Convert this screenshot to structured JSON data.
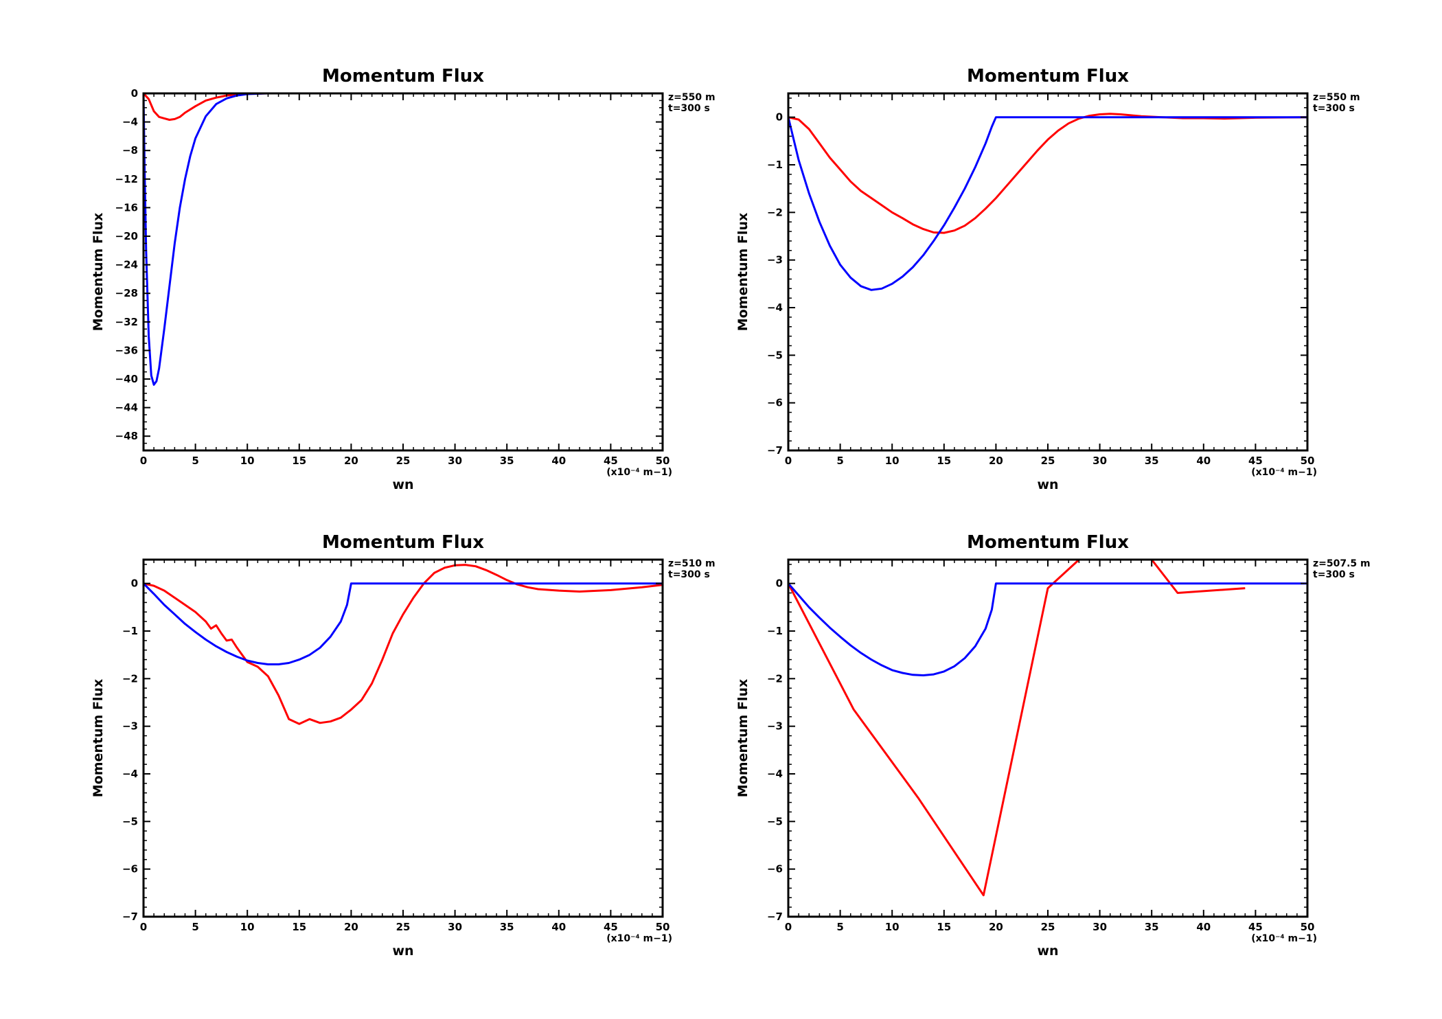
{
  "chart_data": [
    {
      "type": "line",
      "title": "Momentum Flux",
      "xlabel": "wn",
      "ylabel": "Momentum Flux",
      "x_unit": "(x10⁻⁴ m−1)",
      "annotations": [
        "z=550 m",
        "t=300 s"
      ],
      "xlim": [
        0,
        50
      ],
      "ylim": [
        -50,
        0
      ],
      "x_ticks": [
        0,
        5,
        10,
        15,
        20,
        25,
        30,
        35,
        40,
        45,
        50
      ],
      "x_tick_labels": [
        "0",
        "5",
        "10",
        "15",
        "20",
        "25",
        "30",
        "35",
        "40",
        "45",
        "50"
      ],
      "y_ticks": [
        0,
        -4,
        -8,
        -12,
        -16,
        -20,
        -24,
        -28,
        -32,
        -36,
        -40,
        -44,
        -48
      ],
      "y_tick_labels": [
        "0",
        "−4",
        "−8",
        "−12",
        "−16",
        "−20",
        "−24",
        "−28",
        "−32",
        "−36",
        "−40",
        "−44",
        "−48"
      ],
      "grid": false,
      "series": [
        {
          "color": "#ff0000",
          "x": [
            0,
            0.5,
            1,
            1.5,
            2,
            2.5,
            3,
            3.5,
            4,
            5,
            6,
            7,
            8,
            9,
            10,
            12,
            15,
            20,
            30,
            40,
            50
          ],
          "y": [
            0,
            -0.8,
            -2.5,
            -3.3,
            -3.5,
            -3.7,
            -3.6,
            -3.3,
            -2.7,
            -1.8,
            -1.0,
            -0.6,
            -0.3,
            -0.15,
            -0.05,
            0,
            0,
            0,
            0,
            0,
            0
          ]
        },
        {
          "color": "#0000ff",
          "x": [
            0,
            0.1,
            0.25,
            0.5,
            0.75,
            1,
            1.25,
            1.5,
            2,
            2.5,
            3,
            3.5,
            4,
            4.5,
            5,
            6,
            7,
            8,
            9,
            10,
            12,
            15,
            20,
            30,
            40,
            50
          ],
          "y": [
            0,
            -10,
            -22,
            -34,
            -39.5,
            -40.8,
            -40.3,
            -38.5,
            -33,
            -27,
            -21,
            -16,
            -12,
            -8.8,
            -6.3,
            -3.2,
            -1.5,
            -0.7,
            -0.3,
            -0.1,
            0,
            0,
            0,
            0,
            0,
            0
          ]
        }
      ]
    },
    {
      "type": "line",
      "title": "Momentum Flux",
      "xlabel": "wn",
      "ylabel": "Momentum Flux",
      "x_unit": "(x10⁻⁴ m−1)",
      "annotations": [
        "z=550 m",
        "t=300 s"
      ],
      "xlim": [
        0,
        50
      ],
      "ylim": [
        -7,
        0.5
      ],
      "x_ticks": [
        0,
        5,
        10,
        15,
        20,
        25,
        30,
        35,
        40,
        45,
        50
      ],
      "x_tick_labels": [
        "0",
        "5",
        "10",
        "15",
        "20",
        "25",
        "30",
        "35",
        "40",
        "45",
        "50"
      ],
      "y_ticks": [
        0,
        -1,
        -2,
        -3,
        -4,
        -5,
        -6,
        -7
      ],
      "y_tick_labels": [
        "0",
        "−1",
        "−2",
        "−3",
        "−4",
        "−5",
        "−6",
        "−7"
      ],
      "grid": false,
      "series": [
        {
          "color": "#ff0000",
          "x": [
            0,
            1,
            2,
            3,
            4,
            5,
            6,
            7,
            8,
            9,
            10,
            11,
            12,
            13,
            14,
            15,
            16,
            17,
            18,
            19,
            20,
            21,
            22,
            23,
            24,
            25,
            26,
            27,
            28,
            29,
            30,
            31,
            32,
            33,
            34,
            35,
            36,
            37,
            38,
            39,
            40,
            42,
            45,
            50
          ],
          "y": [
            0,
            -0.05,
            -0.25,
            -0.55,
            -0.85,
            -1.1,
            -1.35,
            -1.55,
            -1.7,
            -1.85,
            -2.0,
            -2.12,
            -2.25,
            -2.35,
            -2.42,
            -2.43,
            -2.38,
            -2.28,
            -2.12,
            -1.92,
            -1.7,
            -1.45,
            -1.2,
            -0.95,
            -0.7,
            -0.47,
            -0.28,
            -0.13,
            -0.03,
            0.03,
            0.06,
            0.07,
            0.06,
            0.04,
            0.02,
            0.01,
            0.0,
            -0.01,
            -0.02,
            -0.02,
            -0.02,
            -0.03,
            -0.01,
            0
          ]
        },
        {
          "color": "#0000ff",
          "x": [
            0,
            1,
            2,
            3,
            4,
            5,
            6,
            7,
            8,
            9,
            10,
            11,
            12,
            13,
            14,
            15,
            16,
            17,
            18,
            19,
            19.6,
            20,
            20.05,
            25,
            30,
            35,
            40,
            45,
            50
          ],
          "y": [
            0,
            -0.9,
            -1.6,
            -2.2,
            -2.7,
            -3.1,
            -3.37,
            -3.55,
            -3.63,
            -3.6,
            -3.5,
            -3.35,
            -3.15,
            -2.9,
            -2.6,
            -2.27,
            -1.9,
            -1.5,
            -1.05,
            -0.55,
            -0.2,
            0,
            0,
            0,
            0,
            0,
            0,
            0,
            0
          ]
        }
      ]
    },
    {
      "type": "line",
      "title": "Momentum Flux",
      "xlabel": "wn",
      "ylabel": "Momentum Flux",
      "x_unit": "(x10⁻⁴ m−1)",
      "annotations": [
        "z=510 m",
        "t=300 s"
      ],
      "xlim": [
        0,
        50
      ],
      "ylim": [
        -7,
        0.5
      ],
      "x_ticks": [
        0,
        5,
        10,
        15,
        20,
        25,
        30,
        35,
        40,
        45,
        50
      ],
      "x_tick_labels": [
        "0",
        "5",
        "10",
        "15",
        "20",
        "25",
        "30",
        "35",
        "40",
        "45",
        "50"
      ],
      "y_ticks": [
        0,
        -1,
        -2,
        -3,
        -4,
        -5,
        -6,
        -7
      ],
      "y_tick_labels": [
        "0",
        "−1",
        "−2",
        "−3",
        "−4",
        "−5",
        "−6",
        "−7"
      ],
      "grid": false,
      "series": [
        {
          "color": "#ff0000",
          "x": [
            0,
            1,
            2,
            3,
            4,
            5,
            6,
            6.5,
            7,
            7.5,
            8,
            8.5,
            9,
            10,
            11,
            12,
            13,
            14,
            15,
            16,
            17,
            18,
            19,
            20,
            21,
            22,
            23,
            24,
            25,
            26,
            27,
            28,
            29,
            30,
            31,
            32,
            33,
            34,
            35,
            36,
            37,
            38,
            40,
            42,
            45,
            48,
            50
          ],
          "y": [
            0,
            -0.05,
            -0.15,
            -0.3,
            -0.45,
            -0.6,
            -0.8,
            -0.95,
            -0.88,
            -1.05,
            -1.2,
            -1.18,
            -1.35,
            -1.65,
            -1.75,
            -1.95,
            -2.35,
            -2.85,
            -2.95,
            -2.85,
            -2.93,
            -2.9,
            -2.82,
            -2.65,
            -2.45,
            -2.1,
            -1.6,
            -1.05,
            -0.65,
            -0.3,
            0.0,
            0.22,
            0.33,
            0.38,
            0.39,
            0.36,
            0.28,
            0.18,
            0.07,
            -0.02,
            -0.08,
            -0.12,
            -0.15,
            -0.17,
            -0.14,
            -0.08,
            -0.03
          ]
        },
        {
          "color": "#0000ff",
          "x": [
            0,
            1,
            2,
            3,
            4,
            5,
            6,
            7,
            8,
            9,
            10,
            11,
            12,
            13,
            14,
            15,
            16,
            17,
            18,
            19,
            19.6,
            20,
            20.05,
            25,
            30,
            35,
            40,
            45,
            50
          ],
          "y": [
            0,
            -0.22,
            -0.45,
            -0.65,
            -0.85,
            -1.02,
            -1.18,
            -1.32,
            -1.44,
            -1.54,
            -1.62,
            -1.67,
            -1.7,
            -1.7,
            -1.67,
            -1.6,
            -1.5,
            -1.35,
            -1.12,
            -0.8,
            -0.45,
            0,
            0,
            0,
            0,
            0,
            0,
            0,
            0
          ]
        }
      ]
    },
    {
      "type": "line",
      "title": "Momentum Flux",
      "xlabel": "wn",
      "ylabel": "Momentum Flux",
      "x_unit": "(x10⁻⁴ m−1)",
      "annotations": [
        "z=507.5 m",
        "t=300 s"
      ],
      "xlim": [
        0,
        50
      ],
      "ylim": [
        -7,
        0.5
      ],
      "x_ticks": [
        0,
        5,
        10,
        15,
        20,
        25,
        30,
        35,
        40,
        45,
        50
      ],
      "x_tick_labels": [
        "0",
        "5",
        "10",
        "15",
        "20",
        "25",
        "30",
        "35",
        "40",
        "45",
        "50"
      ],
      "y_ticks": [
        0,
        -1,
        -2,
        -3,
        -4,
        -5,
        -6,
        -7
      ],
      "y_tick_labels": [
        "0",
        "−1",
        "−2",
        "−3",
        "−4",
        "−5",
        "−6",
        "−7"
      ],
      "grid": false,
      "series": [
        {
          "color": "#ff0000",
          "x": [
            0,
            6.3,
            12.5,
            18.8,
            25,
            28,
            30,
            32,
            35,
            37.5,
            44
          ],
          "y": [
            0,
            -2.65,
            -4.5,
            -6.55,
            -0.1,
            0.5,
            0.8,
            0.8,
            0.5,
            -0.2,
            -0.1
          ]
        },
        {
          "color": "#0000ff",
          "x": [
            0,
            1,
            2,
            3,
            4,
            5,
            6,
            7,
            8,
            9,
            10,
            11,
            12,
            13,
            14,
            15,
            16,
            17,
            18,
            19,
            19.6,
            20,
            20.05,
            25,
            30,
            35,
            40,
            45,
            50
          ],
          "y": [
            0,
            -0.25,
            -0.5,
            -0.72,
            -0.93,
            -1.12,
            -1.3,
            -1.46,
            -1.6,
            -1.72,
            -1.82,
            -1.88,
            -1.92,
            -1.93,
            -1.91,
            -1.85,
            -1.74,
            -1.57,
            -1.32,
            -0.95,
            -0.55,
            0,
            0,
            0,
            0,
            0,
            0,
            0,
            0
          ]
        }
      ]
    }
  ]
}
